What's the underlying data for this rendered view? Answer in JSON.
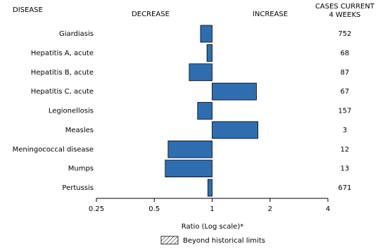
{
  "chart_data": {
    "type": "bar",
    "orientation": "horizontal",
    "log_scale": true,
    "log_base": 2,
    "disease_header": "DISEASE",
    "decrease_label": "DECREASE",
    "increase_label": "INCREASE",
    "cases_header": [
      "CASES CURRENT",
      "4 WEEKS"
    ],
    "categories": [
      "Giardiasis",
      "Hepatitis A, acute",
      "Hepatitis B, acute",
      "Hepatitis C, acute",
      "Legionellosis",
      "Measles",
      "Meningococcal disease",
      "Mumps",
      "Pertussis"
    ],
    "values": [
      0.87,
      0.94,
      0.76,
      1.7,
      0.84,
      1.73,
      0.59,
      0.57,
      0.95
    ],
    "cases": [
      752,
      68,
      87,
      67,
      157,
      3,
      12,
      13,
      671
    ],
    "color": "#2e6eb0",
    "xlim": [
      0.25,
      4
    ],
    "xticks": [
      0.25,
      0.5,
      1,
      2,
      4
    ],
    "xlabel": "Ratio (Log scale)*",
    "legend_label": "Beyond historical limits"
  }
}
